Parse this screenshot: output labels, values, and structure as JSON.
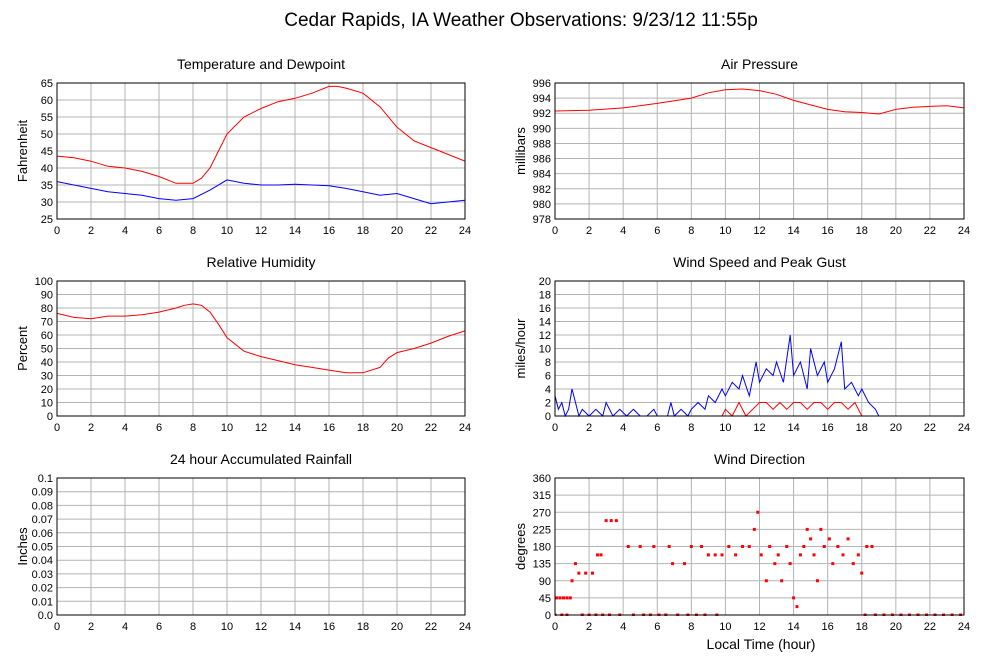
{
  "title": "Cedar Rapids, IA Weather Observations: 9/23/12 11:55p",
  "xlabel_global": "Local Time (hour)",
  "colors": {
    "red": "#ff0000",
    "blue": "#0000ff",
    "grid": "#b4b4b4",
    "frame": "#000000"
  },
  "chart_data": [
    {
      "type": "line",
      "title": "Temperature and Dewpoint",
      "ylabel": "Fahrenheit",
      "xlim": [
        0,
        24
      ],
      "ylim": [
        25,
        65
      ],
      "xticks": [
        0,
        2,
        4,
        6,
        8,
        10,
        12,
        14,
        16,
        18,
        20,
        22,
        24
      ],
      "yticks": [
        25,
        30,
        35,
        40,
        45,
        50,
        55,
        60,
        65
      ],
      "grid": true,
      "series": [
        {
          "color": "#ff0000",
          "x": [
            0,
            1,
            2,
            3,
            4,
            5,
            6,
            7,
            8,
            8.5,
            9,
            9.5,
            10,
            11,
            12,
            13,
            14,
            15,
            15.5,
            16,
            16.5,
            17,
            18,
            19,
            20,
            21,
            22,
            23,
            24
          ],
          "y": [
            43.5,
            43,
            42,
            40.5,
            40,
            39,
            37.5,
            35.5,
            35.5,
            37,
            40,
            45,
            50,
            55,
            57.5,
            59.5,
            60.5,
            62,
            63,
            64,
            64,
            63.5,
            62,
            58,
            52,
            48,
            46,
            44,
            42
          ]
        },
        {
          "color": "#0000ff",
          "x": [
            0,
            1,
            2,
            3,
            4,
            5,
            6,
            7,
            8,
            9,
            10,
            11,
            12,
            13,
            14,
            15,
            16,
            17,
            18,
            19,
            20,
            21,
            22,
            23,
            24
          ],
          "y": [
            36,
            35,
            34,
            33,
            32.5,
            32,
            31,
            30.5,
            31,
            33.5,
            36.5,
            35.5,
            35,
            35,
            35.2,
            35,
            34.8,
            34,
            33,
            32,
            32.5,
            31,
            29.5,
            30,
            30.5
          ]
        }
      ]
    },
    {
      "type": "line",
      "title": "Air Pressure",
      "ylabel": "millibars",
      "xlim": [
        0,
        24
      ],
      "ylim": [
        978,
        996
      ],
      "xticks": [
        0,
        2,
        4,
        6,
        8,
        10,
        12,
        14,
        16,
        18,
        20,
        22,
        24
      ],
      "yticks": [
        978,
        980,
        982,
        984,
        986,
        988,
        990,
        992,
        994,
        996
      ],
      "grid": true,
      "series": [
        {
          "color": "#ff0000",
          "x": [
            0,
            2,
            4,
            6,
            8,
            9,
            10,
            11,
            12,
            13,
            14,
            15,
            16,
            17,
            18,
            19,
            20,
            21,
            22,
            23,
            24
          ],
          "y": [
            992.3,
            992.4,
            992.7,
            993.3,
            994,
            994.7,
            995.1,
            995.2,
            995,
            994.5,
            993.7,
            993.1,
            992.5,
            992.2,
            992.1,
            991.9,
            992.5,
            992.8,
            992.9,
            993,
            992.7
          ]
        }
      ]
    },
    {
      "type": "line",
      "title": "Relative Humidity",
      "ylabel": "Percent",
      "xlim": [
        0,
        24
      ],
      "ylim": [
        0,
        100
      ],
      "xticks": [
        0,
        2,
        4,
        6,
        8,
        10,
        12,
        14,
        16,
        18,
        20,
        22,
        24
      ],
      "yticks": [
        0,
        10,
        20,
        30,
        40,
        50,
        60,
        70,
        80,
        90,
        100
      ],
      "grid": true,
      "series": [
        {
          "color": "#ff0000",
          "x": [
            0,
            1,
            2,
            3,
            4,
            5,
            6,
            7,
            7.5,
            8,
            8.5,
            9,
            9.5,
            10,
            11,
            12,
            13,
            14,
            15,
            16,
            17,
            18,
            19,
            19.5,
            20,
            21,
            22,
            23,
            24
          ],
          "y": [
            76,
            73,
            72,
            74,
            74,
            75,
            77,
            80,
            82,
            83,
            82,
            77,
            68,
            58,
            48,
            44,
            41,
            38,
            36,
            34,
            32,
            32,
            36,
            43,
            47,
            50,
            54,
            59,
            63
          ]
        }
      ]
    },
    {
      "type": "line",
      "title": "Wind Speed and Peak Gust",
      "ylabel": "miles/hour",
      "xlim": [
        0,
        24
      ],
      "ylim": [
        0,
        20
      ],
      "xticks": [
        0,
        2,
        4,
        6,
        8,
        10,
        12,
        14,
        16,
        18,
        20,
        22,
        24
      ],
      "yticks": [
        0,
        2,
        4,
        6,
        8,
        10,
        12,
        14,
        16,
        18,
        20
      ],
      "grid": true,
      "series": [
        {
          "color": "#0000ff",
          "x": [
            0,
            0.2,
            0.4,
            0.6,
            0.8,
            1.0,
            1.2,
            1.4,
            1.6,
            2.0,
            2.4,
            2.8,
            3.0,
            3.4,
            3.8,
            4.2,
            4.6,
            5.0,
            5.4,
            5.8,
            6.0,
            6.2,
            6.6,
            6.8,
            7.0,
            7.4,
            7.8,
            8.0,
            8.4,
            8.8,
            9.0,
            9.4,
            9.8,
            10.0,
            10.4,
            10.8,
            11.0,
            11.4,
            11.8,
            12.0,
            12.4,
            12.8,
            13.0,
            13.4,
            13.8,
            14.0,
            14.4,
            14.8,
            15.0,
            15.4,
            15.8,
            16.0,
            16.4,
            16.8,
            17.0,
            17.4,
            17.8,
            18.0,
            18.4,
            18.8,
            19.0,
            20,
            22,
            24
          ],
          "y": [
            3,
            1,
            2,
            0,
            1,
            4,
            2,
            0,
            1,
            0,
            1,
            0,
            2,
            0,
            1,
            0,
            1,
            0,
            0,
            1,
            0,
            0,
            0,
            2,
            0,
            1,
            0,
            1,
            2,
            1,
            3,
            2,
            4,
            3,
            5,
            4,
            6,
            3,
            8,
            5,
            7,
            6,
            8,
            5,
            12,
            6,
            8,
            4,
            10,
            6,
            8,
            5,
            7,
            11,
            4,
            5,
            3,
            4,
            2,
            1,
            0,
            0,
            0,
            0
          ]
        },
        {
          "color": "#ff0000",
          "x": [
            0,
            9.8,
            10,
            10.4,
            10.8,
            11.2,
            11.6,
            12.0,
            12.4,
            12.8,
            13.2,
            13.6,
            14.0,
            14.4,
            14.8,
            15.2,
            15.6,
            16.0,
            16.4,
            16.8,
            17.2,
            17.6,
            18.0,
            18.2,
            24
          ],
          "y": [
            0,
            0,
            1,
            0,
            2,
            0,
            1,
            2,
            2,
            1,
            2,
            1,
            2,
            2,
            1,
            2,
            2,
            1,
            2,
            2,
            1,
            2,
            0,
            0,
            0
          ]
        }
      ]
    },
    {
      "type": "line",
      "title": "24 hour Accumulated Rainfall",
      "ylabel": "Inches",
      "xlim": [
        0,
        24
      ],
      "ylim": [
        0,
        0.1
      ],
      "xticks": [
        0,
        2,
        4,
        6,
        8,
        10,
        12,
        14,
        16,
        18,
        20,
        22,
        24
      ],
      "yticks": [
        "0.0",
        "0.01",
        "0.02",
        "0.03",
        "0.04",
        "0.05",
        "0.06",
        "0.07",
        "0.08",
        "0.09",
        "0.1"
      ],
      "grid": true,
      "series": [
        {
          "color": "#ff0000",
          "x": [
            0,
            24
          ],
          "y": [
            0,
            0
          ]
        }
      ]
    },
    {
      "type": "scatter",
      "title": "Wind Direction",
      "ylabel": "degrees",
      "xlabel": "Local Time (hour)",
      "xlim": [
        0,
        24
      ],
      "ylim": [
        0,
        360
      ],
      "xticks": [
        0,
        2,
        4,
        6,
        8,
        10,
        12,
        14,
        16,
        18,
        20,
        22,
        24
      ],
      "yticks": [
        0,
        45,
        90,
        135,
        180,
        225,
        270,
        315,
        360
      ],
      "grid": true,
      "series": [
        {
          "color": "#ff0000",
          "points": [
            [
              0.1,
              45
            ],
            [
              0.3,
              45
            ],
            [
              0.5,
              45
            ],
            [
              0.7,
              45
            ],
            [
              0.9,
              45
            ],
            [
              0.7,
              0
            ],
            [
              1.0,
              90
            ],
            [
              1.2,
              135
            ],
            [
              1.4,
              110
            ],
            [
              1.8,
              110
            ],
            [
              2.2,
              110
            ],
            [
              2.5,
              158
            ],
            [
              2.7,
              158
            ],
            [
              3.0,
              248
            ],
            [
              3.3,
              248
            ],
            [
              3.6,
              248
            ],
            [
              4.3,
              180
            ],
            [
              5.0,
              180
            ],
            [
              5.8,
              180
            ],
            [
              6.7,
              180
            ],
            [
              6.9,
              135
            ],
            [
              7.6,
              135
            ],
            [
              8.0,
              180
            ],
            [
              8.6,
              180
            ],
            [
              9.0,
              158
            ],
            [
              9.4,
              158
            ],
            [
              9.8,
              158
            ],
            [
              10.2,
              180
            ],
            [
              10.6,
              158
            ],
            [
              11.0,
              180
            ],
            [
              11.4,
              180
            ],
            [
              11.7,
              225
            ],
            [
              11.9,
              270
            ],
            [
              12.1,
              158
            ],
            [
              12.4,
              90
            ],
            [
              12.6,
              180
            ],
            [
              12.9,
              135
            ],
            [
              13.1,
              158
            ],
            [
              13.3,
              90
            ],
            [
              13.6,
              180
            ],
            [
              13.8,
              135
            ],
            [
              14.0,
              45
            ],
            [
              14.2,
              22
            ],
            [
              14.4,
              158
            ],
            [
              14.6,
              180
            ],
            [
              14.8,
              225
            ],
            [
              15.0,
              200
            ],
            [
              15.2,
              158
            ],
            [
              15.4,
              90
            ],
            [
              15.6,
              225
            ],
            [
              15.8,
              180
            ],
            [
              16.1,
              200
            ],
            [
              16.3,
              135
            ],
            [
              16.6,
              180
            ],
            [
              16.9,
              158
            ],
            [
              17.2,
              200
            ],
            [
              17.5,
              135
            ],
            [
              17.8,
              158
            ],
            [
              18.0,
              110
            ],
            [
              18.3,
              180
            ],
            [
              18.6,
              180
            ],
            [
              18.2,
              0
            ],
            [
              0.0,
              0
            ],
            [
              0.4,
              0
            ],
            [
              1.6,
              0
            ],
            [
              2.0,
              0
            ],
            [
              2.4,
              0
            ],
            [
              2.8,
              0
            ],
            [
              3.2,
              0
            ],
            [
              3.8,
              0
            ],
            [
              4.6,
              0
            ],
            [
              5.2,
              0
            ],
            [
              5.6,
              0
            ],
            [
              6.1,
              0
            ],
            [
              6.5,
              0
            ],
            [
              7.2,
              0
            ],
            [
              7.8,
              0
            ],
            [
              8.3,
              0
            ],
            [
              8.8,
              0
            ],
            [
              9.5,
              0
            ],
            [
              18.8,
              0
            ],
            [
              19.3,
              0
            ],
            [
              19.8,
              0
            ],
            [
              20.3,
              0
            ],
            [
              20.8,
              0
            ],
            [
              21.3,
              0
            ],
            [
              21.8,
              0
            ],
            [
              22.3,
              0
            ],
            [
              22.8,
              0
            ],
            [
              23.3,
              0
            ],
            [
              23.8,
              0
            ]
          ]
        }
      ]
    }
  ]
}
